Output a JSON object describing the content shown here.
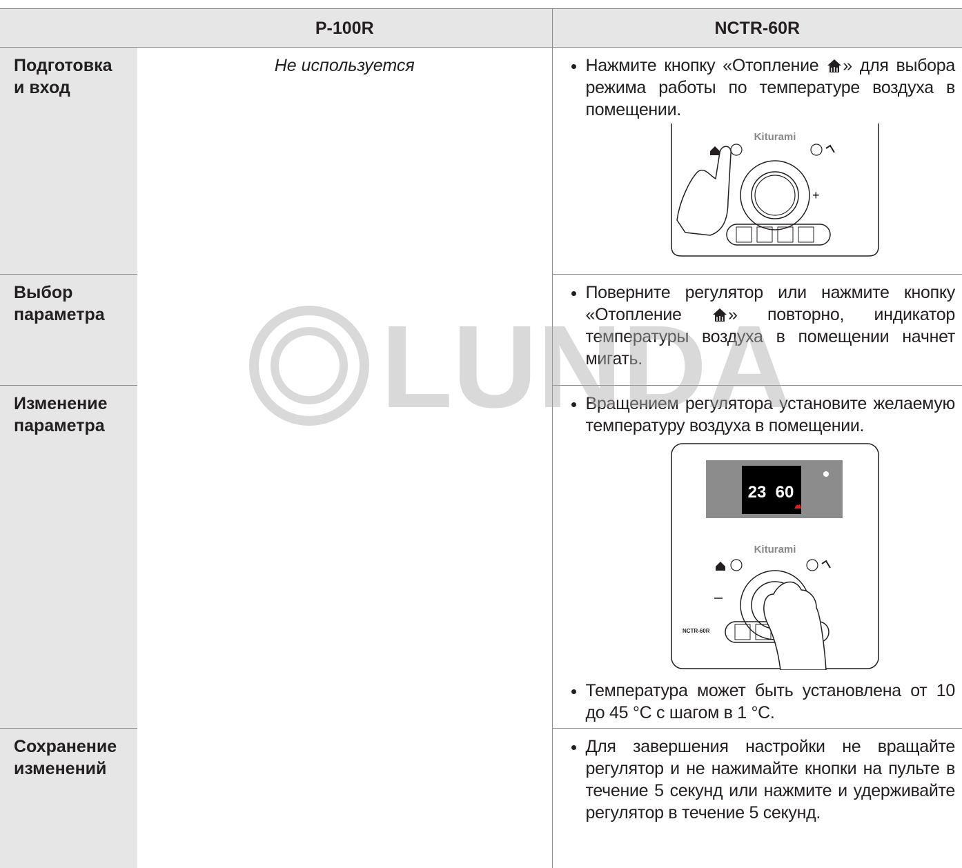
{
  "table": {
    "header": {
      "p100r": "P-100R",
      "nctr60r": "NCTR-60R"
    },
    "p100r_note": "Не используется",
    "rows": [
      {
        "label": [
          "Подготовка",
          "и вход"
        ],
        "nctr60r": [
          {
            "before": "Нажмите кнопку «Отопление ",
            "after": "» для выбора режима работы по температуре воздуха в помещении."
          }
        ]
      },
      {
        "label": [
          "Выбор",
          "параметра"
        ],
        "nctr60r": [
          {
            "before": "Поверните регулятор или нажмите кнопку «Отопление ",
            "after": "» повторно, индикатор температуры воздуха в помещении начнет мигать."
          }
        ]
      },
      {
        "label": [
          "Изменение",
          "параметра"
        ],
        "nctr60r": [
          {
            "text": "Вращением регулятора установите желаемую температуру воздуха в помещении."
          },
          {
            "text": "Температура может быть установлена от 10 до 45 °C с шагом в 1 °C."
          }
        ]
      },
      {
        "label": [
          "Сохранение",
          "изменений"
        ],
        "nctr60r": [
          {
            "text": "Для завершения настройки не вращайте регулятор и не нажимайте кнопки на пульте в течение 5 секунд или нажмите и удерживайте регулятор в течение 5 секунд."
          }
        ]
      }
    ]
  },
  "figures": {
    "brand": "Kiturami",
    "model": "NCTR-60R",
    "display_left": "23",
    "display_right": "60"
  },
  "watermark": "LUNDA"
}
